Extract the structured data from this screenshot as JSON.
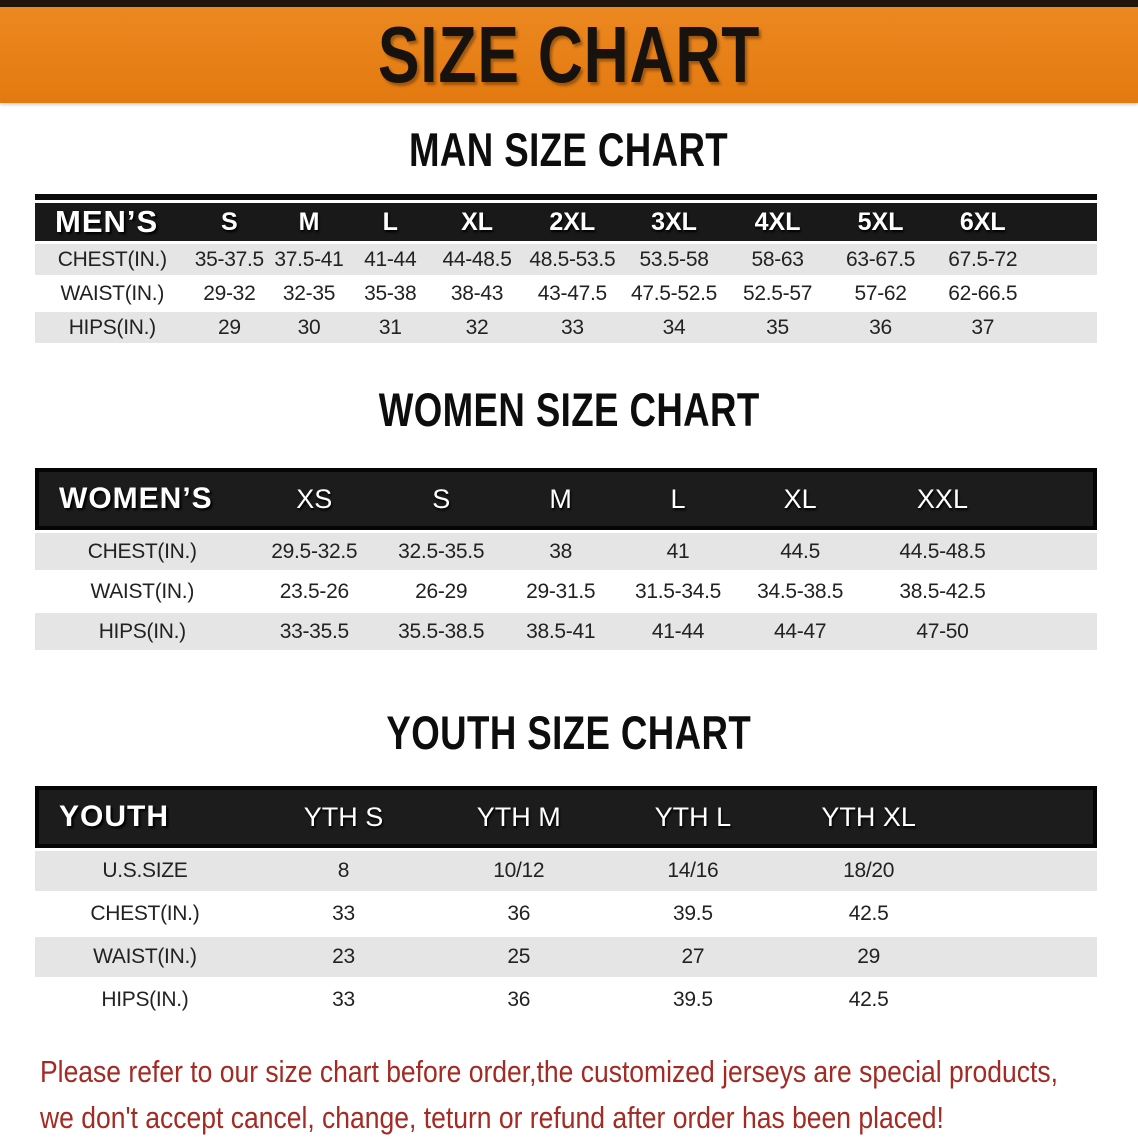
{
  "banner": {
    "title": "SIZE CHART"
  },
  "colors": {
    "banner_bg": "#e8811a",
    "header_row_bg": "#191919",
    "shaded_row_bg": "#e5e5e5",
    "notice_text": "#a32b24"
  },
  "sections": [
    {
      "title": "MAN SIZE CHART",
      "table": {
        "header": [
          "MEN’S",
          "S",
          "M",
          "L",
          "XL",
          "2XL",
          "3XL",
          "4XL",
          "5XL",
          "6XL"
        ],
        "filler_cols": 1,
        "rows": [
          {
            "label": "CHEST(IN.)",
            "values": [
              "35-37.5",
              "37.5-41",
              "41-44",
              "44-48.5",
              "48.5-53.5",
              "53.5-58",
              "58-63",
              "63-67.5",
              "67.5-72"
            ]
          },
          {
            "label": "WAIST(IN.)",
            "values": [
              "29-32",
              "32-35",
              "35-38",
              "38-43",
              "43-47.5",
              "47.5-52.5",
              "52.5-57",
              "57-62",
              "62-66.5"
            ]
          },
          {
            "label": "HIPS(IN.)",
            "values": [
              "29",
              "30",
              "31",
              "32",
              "33",
              "34",
              "35",
              "36",
              "37"
            ]
          }
        ]
      }
    },
    {
      "title": "WOMEN SIZE CHART",
      "table": {
        "header": [
          "WOMEN’S",
          "XS",
          "S",
          "M",
          "L",
          "XL",
          "XXL"
        ],
        "filler_cols": 1,
        "rows": [
          {
            "label": "CHEST(IN.)",
            "values": [
              "29.5-32.5",
              "32.5-35.5",
              "38",
              "41",
              "44.5",
              "44.5-48.5"
            ]
          },
          {
            "label": "WAIST(IN.)",
            "values": [
              "23.5-26",
              "26-29",
              "29-31.5",
              "31.5-34.5",
              "34.5-38.5",
              "38.5-42.5"
            ]
          },
          {
            "label": "HIPS(IN.)",
            "values": [
              "33-35.5",
              "35.5-38.5",
              "38.5-41",
              "41-44",
              "44-47",
              "47-50"
            ]
          }
        ]
      }
    },
    {
      "title": "YOUTH SIZE CHART",
      "table": {
        "header": [
          "YOUTH",
          "YTH S",
          "YTH M",
          "YTH L",
          "YTH XL"
        ],
        "filler_cols": 1,
        "rows": [
          {
            "label": "U.S.SIZE",
            "values": [
              "8",
              "10/12",
              "14/16",
              "18/20"
            ]
          },
          {
            "label": "CHEST(IN.)",
            "values": [
              "33",
              "36",
              "39.5",
              "42.5"
            ]
          },
          {
            "label": "WAIST(IN.)",
            "values": [
              "23",
              "25",
              "27",
              "29"
            ]
          },
          {
            "label": "HIPS(IN.)",
            "values": [
              "33",
              "36",
              "39.5",
              "42.5"
            ]
          }
        ]
      }
    }
  ],
  "notice": {
    "line1": "Please refer to our size chart before order,the customized jerseys are special products,",
    "line2": "we don't accept cancel, change, teturn or refund after order has been placed!"
  }
}
